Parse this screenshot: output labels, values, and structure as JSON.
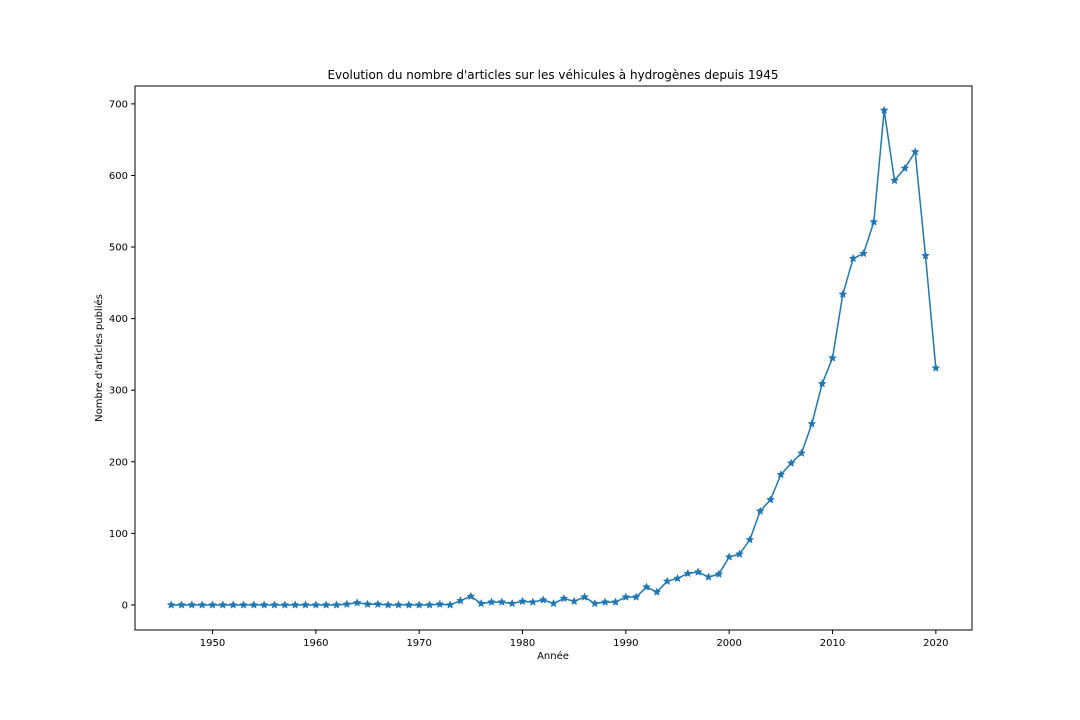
{
  "chart_data": {
    "type": "line",
    "title": "Evolution du nombre d'articles sur les véhicules à hydrogènes depuis 1945",
    "xlabel": "Année",
    "ylabel": "Nombre d'articles publiés",
    "xlim": [
      1942.5,
      2023.5
    ],
    "ylim": [
      -35,
      725
    ],
    "xticks": [
      1950,
      1960,
      1970,
      1980,
      1990,
      2000,
      2010,
      2020
    ],
    "yticks": [
      0,
      100,
      200,
      300,
      400,
      500,
      600,
      700
    ],
    "grid": false,
    "marker": "star",
    "line_color": "#1f77b4",
    "series": [
      {
        "x": [
          1946,
          1947,
          1948,
          1949,
          1950,
          1951,
          1952,
          1953,
          1954,
          1955,
          1956,
          1957,
          1958,
          1959,
          1960,
          1961,
          1962,
          1963,
          1964,
          1965,
          1966,
          1967,
          1968,
          1969,
          1970,
          1971,
          1972,
          1973,
          1974,
          1975,
          1976,
          1977,
          1978,
          1979,
          1980,
          1981,
          1982,
          1983,
          1984,
          1985,
          1986,
          1987,
          1988,
          1989,
          1990,
          1991,
          1992,
          1993,
          1994,
          1995,
          1996,
          1997,
          1998,
          1999,
          2000,
          2001,
          2002,
          2003,
          2004,
          2005,
          2006,
          2007,
          2008,
          2009,
          2010,
          2011,
          2012,
          2013,
          2014,
          2015,
          2016,
          2017,
          2018,
          2019,
          2020
        ],
        "y": [
          0,
          0,
          0,
          0,
          0,
          0,
          0,
          0,
          0,
          0,
          0,
          0,
          0,
          0,
          0,
          0,
          0,
          1,
          3,
          1,
          1,
          0,
          0,
          0,
          0,
          0,
          1,
          0,
          6,
          12,
          2,
          4,
          4,
          2,
          5,
          4,
          7,
          2,
          9,
          5,
          11,
          2,
          4,
          4,
          11,
          11,
          25,
          18,
          33,
          37,
          44,
          46,
          39,
          43,
          67,
          71,
          91,
          131,
          147,
          182,
          198,
          212,
          253,
          309,
          345,
          434,
          484,
          491,
          535,
          691,
          593,
          610,
          633,
          488,
          331
        ]
      }
    ]
  }
}
